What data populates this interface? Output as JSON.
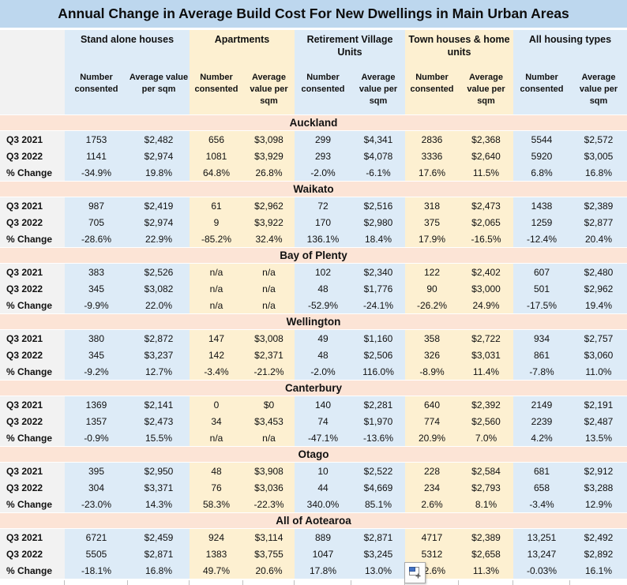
{
  "title": "Annual Change in Average Build Cost For New Dwellings in Main Urban Areas",
  "colors": {
    "title_bg": "#BDD7EE",
    "blue_band": "#DDEBF7",
    "yellow_band": "#FDF0D1",
    "region_header_bg": "#FCE4D6",
    "label_column_bg": "#F2F2F2",
    "paste_icon_blue": "#4472C4"
  },
  "columns": {
    "groups": [
      {
        "label": "Stand alone houses",
        "band": "blue"
      },
      {
        "label": "Apartments",
        "band": "yellow"
      },
      {
        "label": "Retirement Village Units",
        "band": "blue"
      },
      {
        "label": "Town houses & home units",
        "band": "yellow"
      },
      {
        "label": "All housing types",
        "band": "blue"
      }
    ],
    "subheaders": [
      "Number consented",
      "Average value per sqm"
    ]
  },
  "row_labels": [
    "Q3 2021",
    "Q3 2022",
    "% Change"
  ],
  "sections": [
    {
      "region": "Auckland",
      "rows": [
        [
          "1753",
          "$2,482",
          "656",
          "$3,098",
          "299",
          "$4,341",
          "2836",
          "$2,368",
          "5544",
          "$2,572"
        ],
        [
          "1141",
          "$2,974",
          "1081",
          "$3,929",
          "293",
          "$4,078",
          "3336",
          "$2,640",
          "5920",
          "$3,005"
        ],
        [
          "-34.9%",
          "19.8%",
          "64.8%",
          "26.8%",
          "-2.0%",
          "-6.1%",
          "17.6%",
          "11.5%",
          "6.8%",
          "16.8%"
        ]
      ]
    },
    {
      "region": "Waikato",
      "rows": [
        [
          "987",
          "$2,419",
          "61",
          "$2,962",
          "72",
          "$2,516",
          "318",
          "$2,473",
          "1438",
          "$2,389"
        ],
        [
          "705",
          "$2,974",
          "9",
          "$3,922",
          "170",
          "$2,980",
          "375",
          "$2,065",
          "1259",
          "$2,877"
        ],
        [
          "-28.6%",
          "22.9%",
          "-85.2%",
          "32.4%",
          "136.1%",
          "18.4%",
          "17.9%",
          "-16.5%",
          "-12.4%",
          "20.4%"
        ]
      ]
    },
    {
      "region": "Bay of Plenty",
      "rows": [
        [
          "383",
          "$2,526",
          "n/a",
          "n/a",
          "102",
          "$2,340",
          "122",
          "$2,402",
          "607",
          "$2,480"
        ],
        [
          "345",
          "$3,082",
          "n/a",
          "n/a",
          "48",
          "$1,776",
          "90",
          "$3,000",
          "501",
          "$2,962"
        ],
        [
          "-9.9%",
          "22.0%",
          "n/a",
          "n/a",
          "-52.9%",
          "-24.1%",
          "-26.2%",
          "24.9%",
          "-17.5%",
          "19.4%"
        ]
      ]
    },
    {
      "region": "Wellington",
      "rows": [
        [
          "380",
          "$2,872",
          "147",
          "$3,008",
          "49",
          "$1,160",
          "358",
          "$2,722",
          "934",
          "$2,757"
        ],
        [
          "345",
          "$3,237",
          "142",
          "$2,371",
          "48",
          "$2,506",
          "326",
          "$3,031",
          "861",
          "$3,060"
        ],
        [
          "-9.2%",
          "12.7%",
          "-3.4%",
          "-21.2%",
          "-2.0%",
          "116.0%",
          "-8.9%",
          "11.4%",
          "-7.8%",
          "11.0%"
        ]
      ]
    },
    {
      "region": "Canterbury",
      "rows": [
        [
          "1369",
          "$2,141",
          "0",
          "$0",
          "140",
          "$2,281",
          "640",
          "$2,392",
          "2149",
          "$2,191"
        ],
        [
          "1357",
          "$2,473",
          "34",
          "$3,453",
          "74",
          "$1,970",
          "774",
          "$2,560",
          "2239",
          "$2,487"
        ],
        [
          "-0.9%",
          "15.5%",
          "n/a",
          "n/a",
          "-47.1%",
          "-13.6%",
          "20.9%",
          "7.0%",
          "4.2%",
          "13.5%"
        ]
      ]
    },
    {
      "region": "Otago",
      "rows": [
        [
          "395",
          "$2,950",
          "48",
          "$3,908",
          "10",
          "$2,522",
          "228",
          "$2,584",
          "681",
          "$2,912"
        ],
        [
          "304",
          "$3,371",
          "76",
          "$3,036",
          "44",
          "$4,669",
          "234",
          "$2,793",
          "658",
          "$3,288"
        ],
        [
          "-23.0%",
          "14.3%",
          "58.3%",
          "-22.3%",
          "340.0%",
          "85.1%",
          "2.6%",
          "8.1%",
          "-3.4%",
          "12.9%"
        ]
      ]
    },
    {
      "region": "All of Aotearoa",
      "rows": [
        [
          "6721",
          "$2,459",
          "924",
          "$3,114",
          "889",
          "$2,871",
          "4717",
          "$2,389",
          "13,251",
          "$2,492"
        ],
        [
          "5505",
          "$2,871",
          "1383",
          "$3,755",
          "1047",
          "$3,245",
          "5312",
          "$2,658",
          "13,247",
          "$2,892"
        ],
        [
          "-18.1%",
          "16.8%",
          "49.7%",
          "20.6%",
          "17.8%",
          "13.0%",
          "12.6%",
          "11.3%",
          "-0.03%",
          "16.1%"
        ]
      ]
    }
  ],
  "icons": {
    "paste_options": "paste-options-icon"
  }
}
